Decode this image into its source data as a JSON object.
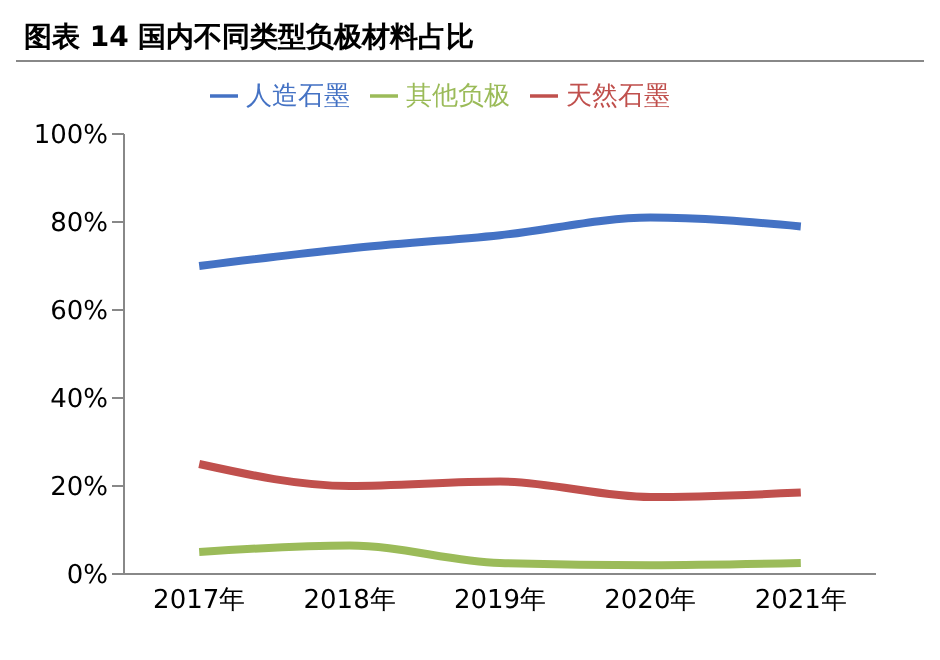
{
  "chart_data": {
    "type": "line",
    "title": "图表 14 国内不同类型负极材料占比",
    "categories": [
      "2017年",
      "2018年",
      "2019年",
      "2020年",
      "2021年"
    ],
    "series": [
      {
        "name": "人造石墨",
        "color": "#4472c4",
        "values": [
          70,
          74,
          77,
          81,
          79
        ]
      },
      {
        "name": "天然石墨",
        "color": "#c0504d",
        "values": [
          25,
          20,
          21,
          17.5,
          18.5
        ]
      },
      {
        "name": "其他负极",
        "color": "#9bbb59",
        "values": [
          5,
          6.5,
          2.5,
          2,
          2.5
        ]
      }
    ],
    "ylim": [
      0,
      100
    ],
    "yticks": [
      {
        "value": 0,
        "label": "0%"
      },
      {
        "value": 20,
        "label": "20%"
      },
      {
        "value": 40,
        "label": "40%"
      },
      {
        "value": 60,
        "label": "60%"
      },
      {
        "value": 80,
        "label": "80%"
      },
      {
        "value": 100,
        "label": "100%"
      }
    ],
    "grid": false,
    "legend": "top",
    "marker": "none",
    "line_style": "solid"
  }
}
